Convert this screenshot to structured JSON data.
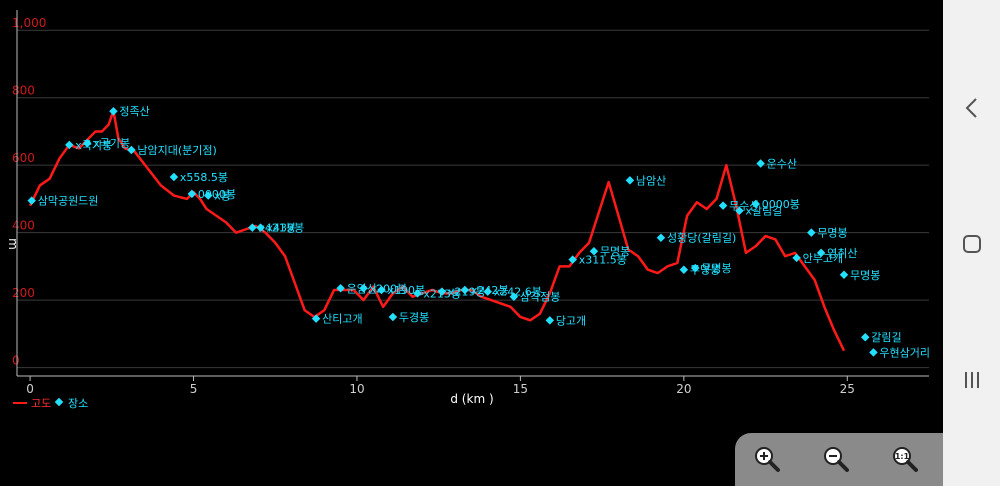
{
  "chart_data": {
    "type": "line",
    "xlabel": "d (km )",
    "ylabel": "m",
    "xlim": [
      -0.4,
      27.5
    ],
    "ylim": [
      -25,
      1060
    ],
    "x_ticks": [
      0,
      5,
      10,
      15,
      20,
      25
    ],
    "y_ticks": [
      {
        "value": 0,
        "label": "0"
      },
      {
        "value": 200,
        "label": "200"
      },
      {
        "value": 400,
        "label": "400"
      },
      {
        "value": 600,
        "label": "600"
      },
      {
        "value": 800,
        "label": "800"
      },
      {
        "value": 1000,
        "label": "1,000"
      }
    ],
    "grid": true,
    "legend": {
      "placement": "bottom-left",
      "entries": [
        {
          "label": "고도",
          "color": "#ff1a1a",
          "marker": "line"
        },
        {
          "label": "장소",
          "color": "#22e0ff",
          "marker": "diamond"
        }
      ]
    },
    "series": [
      {
        "name": "고도",
        "color": "#ff1a1a",
        "x": [
          0,
          0.3,
          0.6,
          0.9,
          1.2,
          1.5,
          1.8,
          2.0,
          2.2,
          2.4,
          2.55,
          2.7,
          2.9,
          3.2,
          3.6,
          4.0,
          4.4,
          4.8,
          5.0,
          5.2,
          5.4,
          5.7,
          6.0,
          6.3,
          6.6,
          6.9,
          7.2,
          7.5,
          7.8,
          8.1,
          8.4,
          8.7,
          9.0,
          9.3,
          9.6,
          9.9,
          10.2,
          10.5,
          10.8,
          11.1,
          11.4,
          11.7,
          12.0,
          12.3,
          12.6,
          12.9,
          13.2,
          13.5,
          13.8,
          14.1,
          14.4,
          14.7,
          15.0,
          15.3,
          15.6,
          15.9,
          16.2,
          16.5,
          16.8,
          17.1,
          17.4,
          17.7,
          18.0,
          18.3,
          18.6,
          18.9,
          19.2,
          19.5,
          19.8,
          20.1,
          20.4,
          20.7,
          21.0,
          21.3,
          21.6,
          21.9,
          22.2,
          22.5,
          22.8,
          23.1,
          23.4,
          23.7,
          24.0,
          24.3,
          24.6,
          24.9
        ],
        "y": [
          480,
          540,
          560,
          620,
          660,
          650,
          680,
          700,
          700,
          720,
          760,
          680,
          650,
          640,
          590,
          540,
          510,
          500,
          520,
          500,
          470,
          450,
          430,
          400,
          410,
          420,
          400,
          370,
          330,
          250,
          170,
          150,
          170,
          230,
          230,
          230,
          200,
          240,
          180,
          220,
          240,
          210,
          220,
          230,
          220,
          220,
          230,
          230,
          210,
          200,
          190,
          180,
          150,
          140,
          160,
          220,
          300,
          300,
          340,
          370,
          460,
          550,
          450,
          350,
          330,
          290,
          280,
          300,
          310,
          450,
          490,
          470,
          500,
          600,
          480,
          340,
          360,
          390,
          380,
          330,
          340,
          300,
          260,
          180,
          110,
          50
        ]
      },
      {
        "name": "장소",
        "color": "#22e0ff",
        "marker": "diamond",
        "points": [
          {
            "x": 0.05,
            "y": 495,
            "label": "삼막공원드원"
          },
          {
            "x": 1.2,
            "y": 660,
            "label": "x국기봉"
          },
          {
            "x": 1.75,
            "y": 665,
            "label": "x국기봉"
          },
          {
            "x": 2.55,
            "y": 760,
            "label": "정족산"
          },
          {
            "x": 3.1,
            "y": 645,
            "label": "남암지대(분기점)"
          },
          {
            "x": 4.4,
            "y": 565,
            "label": "x558.5봉"
          },
          {
            "x": 4.95,
            "y": 515,
            "label": "0000봉"
          },
          {
            "x": 5.45,
            "y": 510,
            "label": "x봉"
          },
          {
            "x": 6.8,
            "y": 415,
            "label": "x421봉"
          },
          {
            "x": 7.05,
            "y": 415,
            "label": "x439봉"
          },
          {
            "x": 8.75,
            "y": 145,
            "label": "산티고개"
          },
          {
            "x": 9.5,
            "y": 235,
            "label": "운암산"
          },
          {
            "x": 10.2,
            "y": 235,
            "label": "x200봉"
          },
          {
            "x": 10.75,
            "y": 230,
            "label": "x190봉"
          },
          {
            "x": 11.1,
            "y": 150,
            "label": "두경봉"
          },
          {
            "x": 11.85,
            "y": 220,
            "label": "x213봉"
          },
          {
            "x": 12.6,
            "y": 225,
            "label": "x219봉"
          },
          {
            "x": 13.3,
            "y": 230,
            "label": "x242봉"
          },
          {
            "x": 14.0,
            "y": 225,
            "label": "x242.6봉"
          },
          {
            "x": 14.8,
            "y": 210,
            "label": "삼각점봉"
          },
          {
            "x": 15.9,
            "y": 140,
            "label": "당고개"
          },
          {
            "x": 16.6,
            "y": 320,
            "label": "x311.5봉"
          },
          {
            "x": 17.25,
            "y": 345,
            "label": "무명봉"
          },
          {
            "x": 18.35,
            "y": 555,
            "label": "남암산"
          },
          {
            "x": 19.3,
            "y": 385,
            "label": "성황당(갈림길)"
          },
          {
            "x": 20.0,
            "y": 290,
            "label": "무명봉"
          },
          {
            "x": 20.35,
            "y": 295,
            "label": "무명봉"
          },
          {
            "x": 21.2,
            "y": 480,
            "label": "무수산"
          },
          {
            "x": 21.7,
            "y": 465,
            "label": "x갈림길"
          },
          {
            "x": 22.2,
            "y": 485,
            "label": "0000봉"
          },
          {
            "x": 22.35,
            "y": 605,
            "label": "운수산"
          },
          {
            "x": 23.45,
            "y": 325,
            "label": "안부고개"
          },
          {
            "x": 23.9,
            "y": 400,
            "label": "무명봉"
          },
          {
            "x": 24.2,
            "y": 340,
            "label": "영취산"
          },
          {
            "x": 24.9,
            "y": 275,
            "label": "무명봉"
          },
          {
            "x": 25.55,
            "y": 90,
            "label": "갈림길"
          },
          {
            "x": 25.8,
            "y": 45,
            "label": "우현삼거리"
          }
        ]
      }
    ]
  },
  "nav": {
    "back_icon": "chevron-left-icon",
    "home_icon": "square-home-icon",
    "recents_icon": "three-bars-recents-icon"
  },
  "zoom": {
    "zoom_in_icon": "zoom-in-magnifier-icon",
    "zoom_out_icon": "zoom-out-magnifier-icon",
    "zoom_reset_icon": "zoom-reset-magnifier-icon",
    "zoom_reset_glyph": "1:1"
  }
}
